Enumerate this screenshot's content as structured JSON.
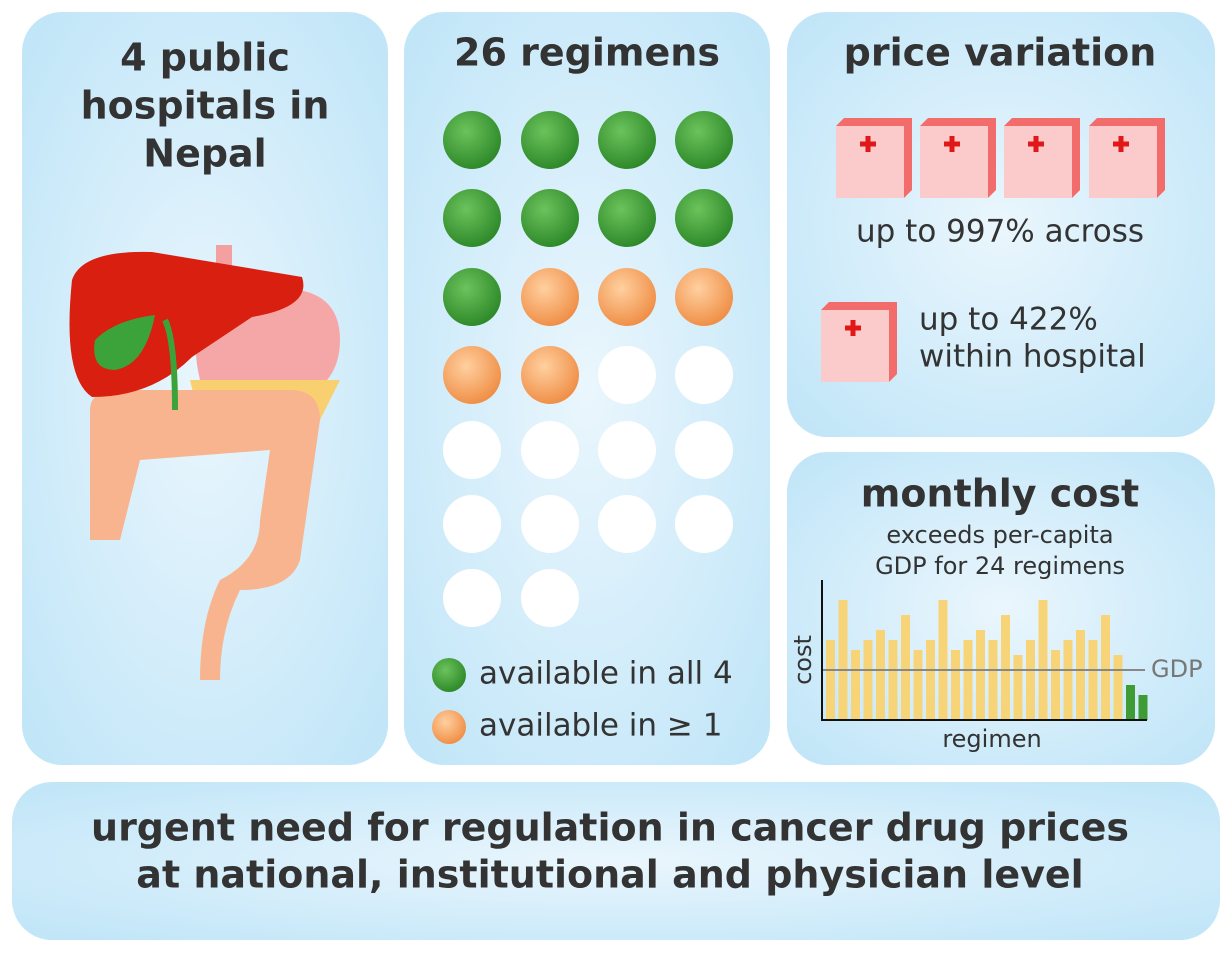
{
  "hospitals": {
    "title_lines": [
      "4 public",
      "hospitals in",
      "Nepal"
    ]
  },
  "regimens": {
    "title": "26 regimens",
    "total": 26,
    "legend": [
      {
        "label": "available in all 4",
        "color": "#3f9c35",
        "count": 9
      },
      {
        "label": "available in ≥ 1",
        "color": "#f4a261",
        "count": 5
      }
    ],
    "empty_color": "#ffffff"
  },
  "price_variation": {
    "title": "price variation",
    "across": "up to 997% across",
    "within_lines": [
      "up to 422%",
      "within hospital"
    ]
  },
  "monthly_cost": {
    "title": "monthly cost",
    "subtitle_lines": [
      "exceeds per-capita",
      "GDP for 24 regimens"
    ],
    "chart_data": {
      "type": "bar",
      "x_label": "regimen",
      "y_label": "cost",
      "ylim": [
        0,
        2.8
      ],
      "values": [
        1.6,
        2.4,
        1.4,
        1.6,
        1.8,
        1.6,
        2.1,
        1.4,
        1.6,
        2.4,
        1.4,
        1.6,
        1.8,
        1.6,
        2.1,
        1.3,
        1.6,
        2.4,
        1.4,
        1.6,
        1.8,
        1.6,
        2.1,
        1.3,
        0.7,
        0.5
      ],
      "colors": [
        "#f8d478",
        "#f8d478",
        "#f8d478",
        "#f8d478",
        "#f8d478",
        "#f8d478",
        "#f8d478",
        "#f8d478",
        "#f8d478",
        "#f8d478",
        "#f8d478",
        "#f8d478",
        "#f8d478",
        "#f8d478",
        "#f8d478",
        "#f8d478",
        "#f8d478",
        "#f8d478",
        "#f8d478",
        "#f8d478",
        "#f8d478",
        "#f8d478",
        "#f8d478",
        "#f8d478",
        "#3f9c35",
        "#3f9c35"
      ],
      "reference_line": {
        "value": 1,
        "label": "GDP"
      }
    }
  },
  "conclusion": {
    "lines": [
      "urgent need for regulation in cancer drug prices",
      "at national, institutional and physician level"
    ]
  }
}
